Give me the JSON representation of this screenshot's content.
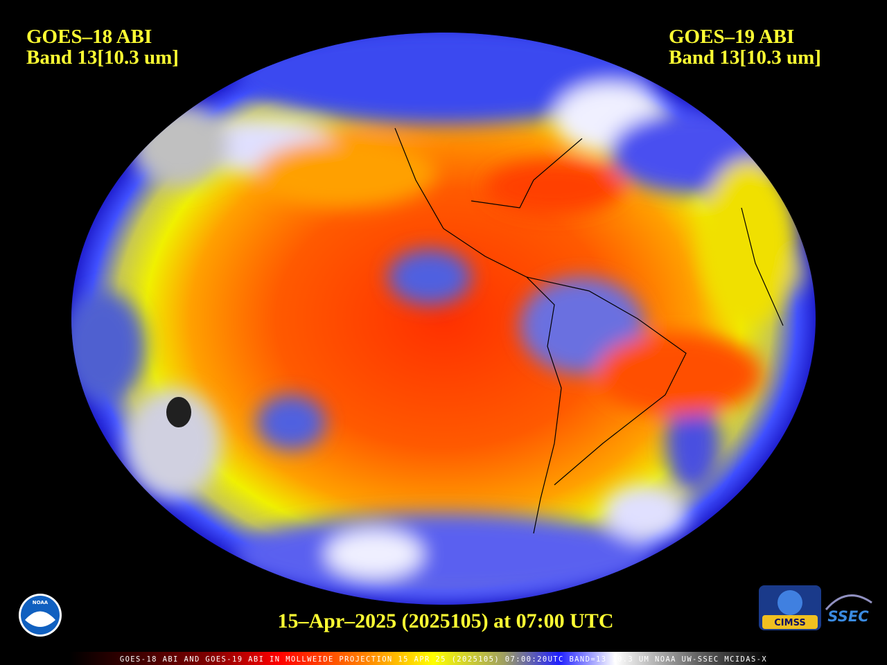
{
  "header": {
    "left": {
      "satellite": "GOES–18 ABI",
      "band": "Band 13[10.3 um]"
    },
    "right": {
      "satellite": "GOES–19 ABI",
      "band": "Band 13[10.3 um]"
    }
  },
  "timestamp": "15–Apr–2025 (2025105) at 07:00 UTC",
  "footer": "GOES-18 ABI AND GOES-19 ABI IN MOLLWEIDE PROJECTION 15 APR 25 (2025105) 07:00:20UTC BAND=13 10.3 UM NOAA UW-SSEC MCIDAS-X",
  "logos": {
    "noaa": "NOAA",
    "cimss": "CIMSS",
    "ssec": "SSEC"
  }
}
